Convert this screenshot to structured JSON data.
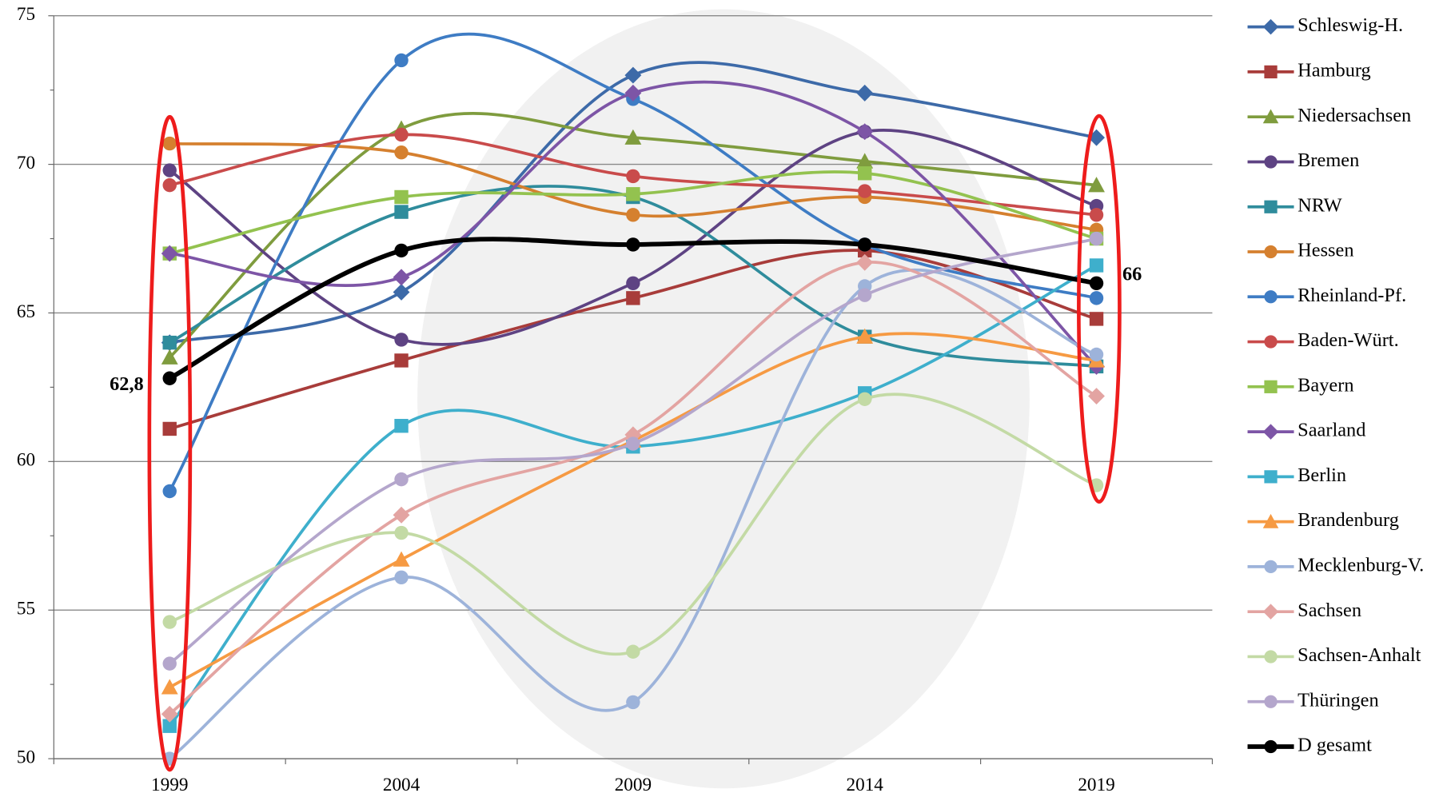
{
  "chart_data": {
    "type": "line",
    "categories": [
      "1999",
      "2004",
      "2009",
      "2014",
      "2019"
    ],
    "ylim": [
      50,
      75
    ],
    "yticks": [
      50,
      55,
      60,
      65,
      70,
      75
    ],
    "grid": true,
    "smooth": true,
    "legend": "right",
    "series": [
      {
        "name": "Schleswig-H.",
        "color": "#3d6aa8",
        "marker": "diamond",
        "values": [
          64.0,
          65.7,
          73.0,
          72.4,
          70.9
        ]
      },
      {
        "name": "Hamburg",
        "color": "#a83c3a",
        "marker": "square",
        "values": [
          61.1,
          63.4,
          65.5,
          67.1,
          64.8
        ]
      },
      {
        "name": "Niedersachsen",
        "color": "#7f9c3e",
        "marker": "triangle",
        "values": [
          63.5,
          71.2,
          70.9,
          70.1,
          69.3
        ]
      },
      {
        "name": "Bremen",
        "color": "#5e4383",
        "marker": "circle",
        "values": [
          69.8,
          64.1,
          66.0,
          71.1,
          68.6
        ]
      },
      {
        "name": "NRW",
        "color": "#2f8c9c",
        "marker": "square",
        "values": [
          64.0,
          68.4,
          68.9,
          64.2,
          63.2
        ]
      },
      {
        "name": "Hessen",
        "color": "#d5802f",
        "marker": "circle",
        "values": [
          70.7,
          70.4,
          68.3,
          68.9,
          67.8
        ]
      },
      {
        "name": "Rheinland-Pf.",
        "color": "#3e7cc4",
        "marker": "circle",
        "values": [
          59.0,
          73.5,
          72.2,
          67.3,
          65.5
        ]
      },
      {
        "name": "Baden-Würt.",
        "color": "#c94b4b",
        "marker": "circle",
        "values": [
          69.3,
          71.0,
          69.6,
          69.1,
          68.3
        ]
      },
      {
        "name": "Bayern",
        "color": "#93c24f",
        "marker": "square",
        "values": [
          67.0,
          68.9,
          69.0,
          69.7,
          67.5
        ]
      },
      {
        "name": "Saarland",
        "color": "#7d55a6",
        "marker": "diamond",
        "values": [
          67.0,
          66.2,
          72.4,
          71.1,
          63.2
        ]
      },
      {
        "name": "Berlin",
        "color": "#3eafcc",
        "marker": "square",
        "values": [
          51.1,
          61.2,
          60.5,
          62.3,
          66.6
        ]
      },
      {
        "name": "Brandenburg",
        "color": "#f69a43",
        "marker": "triangle",
        "values": [
          52.4,
          56.7,
          60.7,
          64.2,
          63.4
        ]
      },
      {
        "name": "Mecklenburg-V.",
        "color": "#9db3da",
        "marker": "circle",
        "values": [
          50.0,
          56.1,
          51.9,
          65.9,
          63.6
        ]
      },
      {
        "name": "Sachsen",
        "color": "#e3a4a2",
        "marker": "diamond",
        "values": [
          51.5,
          58.2,
          60.9,
          66.7,
          62.2
        ]
      },
      {
        "name": "Sachsen-Anhalt",
        "color": "#c3daa5",
        "marker": "circle",
        "values": [
          54.6,
          57.6,
          53.6,
          62.1,
          59.2
        ]
      },
      {
        "name": "Thüringen",
        "color": "#b4a6cc",
        "marker": "circle",
        "values": [
          53.2,
          59.4,
          60.6,
          65.6,
          67.5
        ]
      },
      {
        "name": "D gesamt",
        "color": "#000000",
        "marker": "circle",
        "values": [
          62.8,
          67.1,
          67.3,
          67.3,
          66.0
        ],
        "value_labels": [
          "62,8",
          null,
          null,
          null,
          "66"
        ]
      }
    ]
  }
}
